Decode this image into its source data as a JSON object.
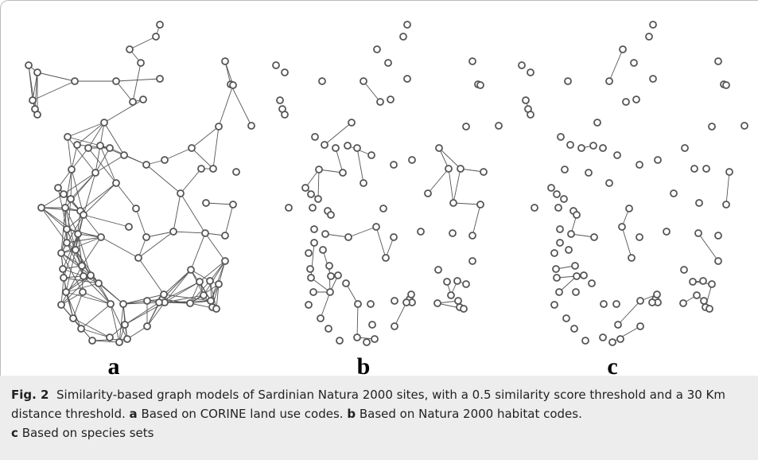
{
  "figure": {
    "panels": [
      "a",
      "b",
      "c"
    ],
    "caption": {
      "label": "Fig. 2",
      "text": "Similarity-based graph models of Sardinian Natura 2000 sites, with a 0.5 similarity score threshold and a 30 Km distance threshold.",
      "parts": [
        {
          "key": "a",
          "text": "Based on CORINE land use codes."
        },
        {
          "key": "b",
          "text": "Based on Natura 2000 habitat codes."
        },
        {
          "key": "c",
          "text": "Based on species sets"
        }
      ]
    }
  }
}
